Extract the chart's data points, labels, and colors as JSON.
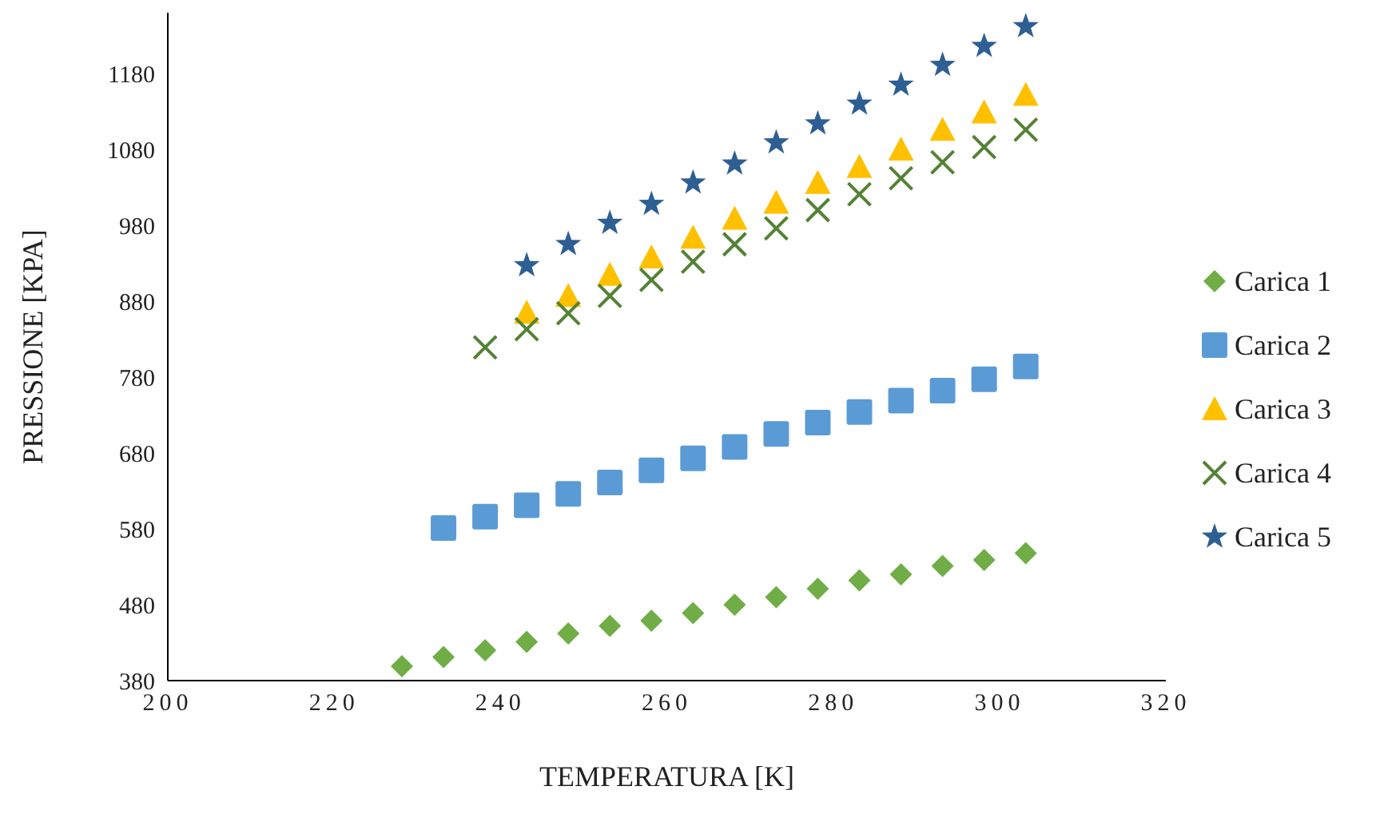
{
  "chart_data": {
    "type": "scatter",
    "xlabel": "TEMPERATURA [K]",
    "ylabel": "PRESSIONE [KPA]",
    "xlim": [
      200,
      320
    ],
    "xticks": [
      200,
      220,
      240,
      260,
      280,
      300,
      320
    ],
    "ylim": [
      380,
      1260
    ],
    "yticks": [
      380,
      480,
      580,
      680,
      780,
      880,
      980,
      1080,
      1180
    ],
    "grid": false,
    "legend": "right",
    "series": [
      {
        "name": "Carica 1",
        "color": "#70ad47",
        "marker": "diamond",
        "x": [
          228.15,
          233.15,
          238.15,
          243.15,
          248.15,
          253.15,
          258.15,
          263.15,
          268.15,
          273.15,
          278.15,
          283.15,
          288.15,
          293.15,
          298.15,
          303.15
        ],
        "values": [
          399,
          411,
          420,
          431,
          442,
          452,
          459,
          469,
          480,
          490,
          501,
          512,
          520,
          531,
          539,
          548
        ]
      },
      {
        "name": "Carica 2",
        "color": "#5b9bd5",
        "marker": "square",
        "x": [
          233.15,
          238.15,
          243.15,
          248.15,
          253.15,
          258.15,
          263.15,
          268.15,
          273.15,
          278.15,
          283.15,
          288.15,
          293.15,
          298.15,
          303.15
        ],
        "values": [
          581,
          596,
          611,
          626,
          641,
          657,
          673,
          688,
          705,
          720,
          734,
          749,
          762,
          777,
          794
        ]
      },
      {
        "name": "Carica 3",
        "color": "#ffc000",
        "marker": "triangle",
        "x": [
          243.15,
          248.15,
          253.15,
          258.15,
          263.15,
          268.15,
          273.15,
          278.15,
          283.15,
          288.15,
          293.15,
          298.15,
          303.15
        ],
        "values": [
          865,
          887,
          915,
          938,
          964,
          989,
          1010,
          1036,
          1057,
          1080,
          1106,
          1129,
          1152
        ]
      },
      {
        "name": "Carica 4",
        "color": "#548235",
        "marker": "cross",
        "x": [
          238.15,
          243.15,
          248.15,
          253.15,
          258.15,
          263.15,
          268.15,
          273.15,
          278.15,
          283.15,
          288.15,
          293.15,
          298.15,
          303.15
        ],
        "values": [
          819,
          843,
          864,
          887,
          908,
          932,
          955,
          976,
          1000,
          1021,
          1042,
          1063,
          1083,
          1106
        ]
      },
      {
        "name": "Carica 5",
        "color": "#2e5f93",
        "marker": "star",
        "x": [
          243.15,
          248.15,
          253.15,
          258.15,
          263.15,
          268.15,
          273.15,
          278.15,
          283.15,
          288.15,
          293.15,
          298.15,
          303.15
        ],
        "values": [
          927,
          955,
          983,
          1008,
          1036,
          1061,
          1089,
          1114,
          1140,
          1165,
          1191,
          1216,
          1242
        ]
      }
    ]
  }
}
